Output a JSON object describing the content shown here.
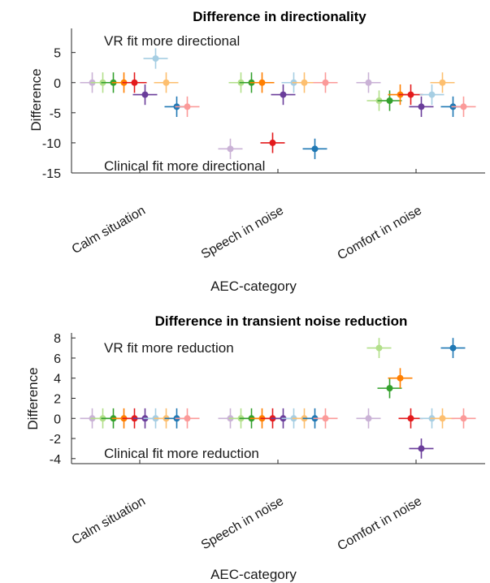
{
  "chart_data": [
    {
      "type": "scatter",
      "title": "Difference in directionality",
      "xlabel": "AEC-category",
      "ylabel": "Difference",
      "categories": [
        "Calm situation",
        "Speech in noise",
        "Comfort in noise"
      ],
      "ylim": [
        -15,
        9
      ],
      "yticks": [
        5,
        0,
        -5,
        -10,
        -15
      ],
      "annotations": {
        "top": "VR fit more directional",
        "bottom": "Clinical fit more directional"
      },
      "errorbar": 1.7,
      "series": [
        {
          "color": "#cab2d6",
          "values": [
            0,
            -11,
            0
          ]
        },
        {
          "color": "#b2df8a",
          "values": [
            0,
            0,
            -3
          ]
        },
        {
          "color": "#33a02c",
          "values": [
            0,
            0,
            -3
          ]
        },
        {
          "color": "#ff7f00",
          "values": [
            0,
            0,
            -2
          ]
        },
        {
          "color": "#e31a1c",
          "values": [
            0,
            -10,
            -2
          ]
        },
        {
          "color": "#6a3d9a",
          "values": [
            -2,
            -2,
            -4
          ]
        },
        {
          "color": "#a6cee3",
          "values": [
            4,
            0,
            -2
          ]
        },
        {
          "color": "#fdbf6f",
          "values": [
            0,
            0,
            0
          ]
        },
        {
          "color": "#1f78b4",
          "values": [
            -4,
            -11,
            -4
          ]
        },
        {
          "color": "#fb9a99",
          "values": [
            -4,
            0,
            -4
          ]
        }
      ]
    },
    {
      "type": "scatter",
      "title": "Difference in transient noise reduction",
      "xlabel": "AEC-category",
      "ylabel": "Difference",
      "categories": [
        "Calm situation",
        "Speech in noise",
        "Comfort in noise"
      ],
      "ylim": [
        -4.5,
        8.5
      ],
      "yticks": [
        8,
        6,
        4,
        2,
        0,
        -2,
        -4
      ],
      "annotations": {
        "top": "VR fit more reduction",
        "bottom": "Clinical fit more reduction"
      },
      "errorbar": 1,
      "series": [
        {
          "color": "#cab2d6",
          "values": [
            0,
            0,
            0
          ]
        },
        {
          "color": "#b2df8a",
          "values": [
            0,
            0,
            7
          ]
        },
        {
          "color": "#33a02c",
          "values": [
            0,
            0,
            3
          ]
        },
        {
          "color": "#ff7f00",
          "values": [
            0,
            0,
            4
          ]
        },
        {
          "color": "#e31a1c",
          "values": [
            0,
            0,
            0
          ]
        },
        {
          "color": "#6a3d9a",
          "values": [
            0,
            0,
            -3
          ]
        },
        {
          "color": "#a6cee3",
          "values": [
            0,
            0,
            0
          ]
        },
        {
          "color": "#fdbf6f",
          "values": [
            0,
            0,
            0
          ]
        },
        {
          "color": "#1f78b4",
          "values": [
            0,
            0,
            7
          ]
        },
        {
          "color": "#fb9a99",
          "values": [
            0,
            0,
            0
          ]
        }
      ]
    }
  ]
}
